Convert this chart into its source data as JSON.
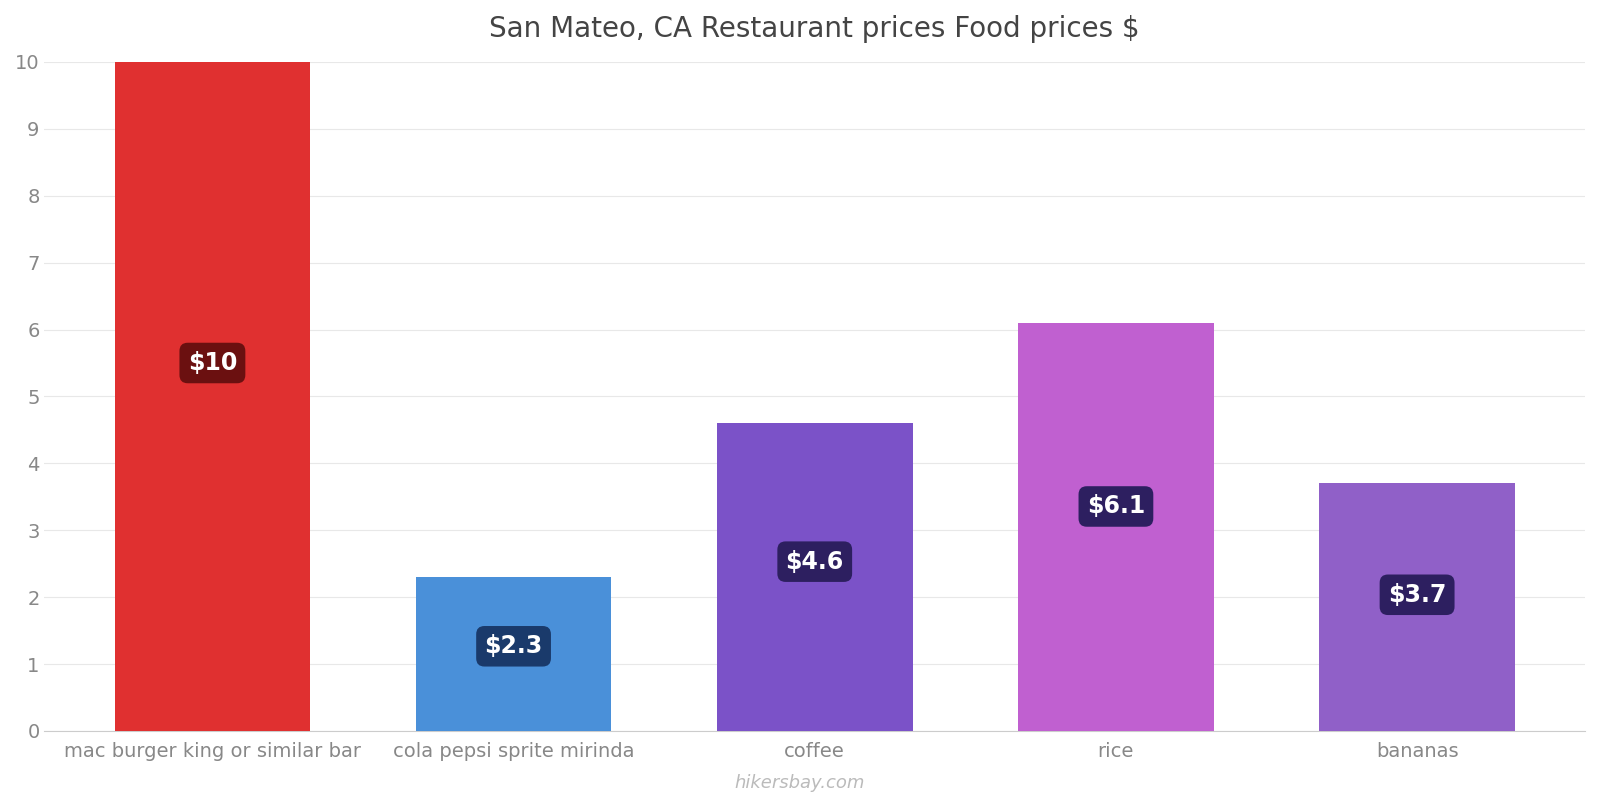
{
  "categories": [
    "mac burger king or similar bar",
    "cola pepsi sprite mirinda",
    "coffee",
    "rice",
    "bananas"
  ],
  "values": [
    10,
    2.3,
    4.6,
    6.1,
    3.7
  ],
  "labels": [
    "$10",
    "$2.3",
    "$4.6",
    "$6.1",
    "$3.7"
  ],
  "bar_colors": [
    "#E03030",
    "#4A90D9",
    "#7B52C8",
    "#C060D0",
    "#9060C8"
  ],
  "label_bg_colors": [
    "#6B1010",
    "#1A3A6B",
    "#2D1F60",
    "#2D1F60",
    "#2D1F60"
  ],
  "title": "San Mateo, CA Restaurant prices Food prices $",
  "ylim": [
    0,
    10
  ],
  "yticks": [
    0,
    1,
    2,
    3,
    4,
    5,
    6,
    7,
    8,
    9,
    10
  ],
  "title_fontsize": 20,
  "label_fontsize": 17,
  "tick_fontsize": 14,
  "watermark": "hikersbay.com",
  "background_color": "#ffffff",
  "grid_color": "#e8e8e8",
  "bar_width": 0.65
}
